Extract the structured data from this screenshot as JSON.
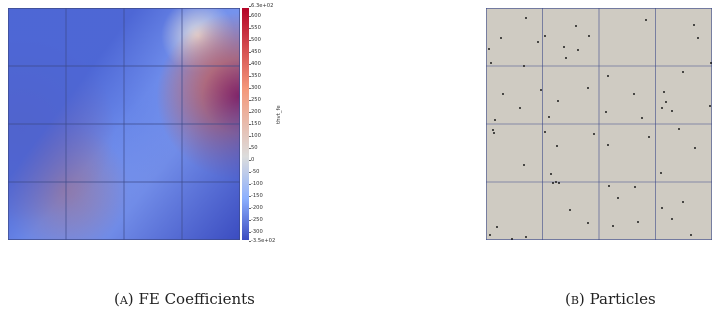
{
  "figure_a": {
    "caption_label": "(a)",
    "caption_text": "FE Coefficients",
    "colorbar": {
      "title": "thvt_fe",
      "max_label": "6.3e+02",
      "min_label": "-3.5e+02",
      "ticks": [
        "600",
        "550",
        "500",
        "450",
        "400",
        "350",
        "300",
        "250",
        "200",
        "150",
        "100",
        "50",
        "0",
        "-50",
        "-100",
        "-150",
        "-200",
        "-250",
        "-300"
      ],
      "colors": [
        "#3b4cc0",
        "#dcdcdc",
        "#b40426"
      ]
    },
    "grid": {
      "rows": 4,
      "cols": 4
    }
  },
  "figure_b": {
    "caption_label": "(b)",
    "caption_text": "Particles",
    "background_color": "#cfcbc2",
    "grid": {
      "rows": 4,
      "cols": 4
    }
  }
}
